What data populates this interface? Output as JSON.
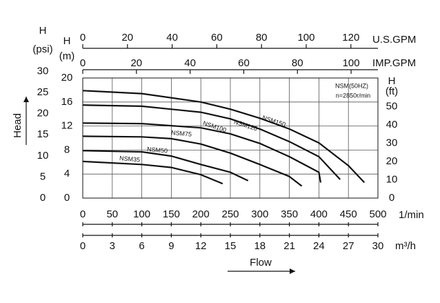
{
  "chart_data": {
    "type": "line",
    "x_label": "Flow",
    "y_label": "Head",
    "x_unit": "1/min",
    "xlim": [
      0,
      500
    ],
    "xticks": [
      0,
      50,
      100,
      150,
      200,
      250,
      300,
      350,
      400,
      450,
      500
    ],
    "y_symbol": "H",
    "y_unit": "(m)",
    "ylim": [
      0,
      20
    ],
    "yticks": [
      0,
      4,
      8,
      12,
      16,
      20
    ],
    "grid": true,
    "annotations": [
      "NSM(50HZ)",
      "n=2850r/min"
    ],
    "extra_axes": [
      {
        "symbol": "H",
        "unit": "(psi)",
        "lim": [
          0,
          28.45
        ],
        "ticks": [
          0,
          5,
          10,
          15,
          20,
          25,
          30
        ]
      },
      {
        "symbol": "H",
        "unit": "(ft)",
        "lim": [
          0,
          65.6
        ],
        "ticks": [
          0,
          10,
          20,
          30,
          40,
          50
        ]
      },
      {
        "unit": "U.S.GPM",
        "lim": [
          0,
          132.1
        ],
        "ticks": [
          0,
          20,
          40,
          60,
          80,
          100,
          120
        ]
      },
      {
        "unit": "IMP.GPM",
        "lim": [
          0,
          110
        ],
        "ticks": [
          0,
          20,
          40,
          60,
          80,
          100
        ]
      },
      {
        "unit": "m³/h",
        "lim": [
          0,
          30
        ],
        "ticks": [
          0,
          3,
          6,
          9,
          12,
          15,
          18,
          21,
          24,
          27,
          30
        ]
      }
    ],
    "series": [
      {
        "name": "NSM35",
        "color": "#111111",
        "x": [
          0,
          100,
          150,
          200,
          237
        ],
        "values": [
          6.1,
          5.6,
          5.1,
          3.9,
          2.4
        ]
      },
      {
        "name": "NSM50",
        "color": "#111111",
        "x": [
          0,
          100,
          150,
          200,
          250,
          280
        ],
        "values": [
          7.9,
          7.7,
          7.0,
          5.6,
          4.3,
          2.9
        ]
      },
      {
        "name": "NSM75",
        "color": "#111111",
        "x": [
          0,
          100,
          150,
          200,
          250,
          300,
          350,
          371
        ],
        "values": [
          10.3,
          10.2,
          9.9,
          9.0,
          7.5,
          5.6,
          3.6,
          2.0
        ]
      },
      {
        "name": "NSM100",
        "color": "#111111",
        "x": [
          0,
          100,
          200,
          250,
          300,
          350,
          400,
          403
        ],
        "values": [
          12.5,
          12.4,
          11.7,
          10.7,
          9.1,
          6.9,
          4.3,
          2.6
        ]
      },
      {
        "name": "NSM120",
        "color": "#111111",
        "x": [
          0,
          100,
          200,
          250,
          300,
          350,
          400,
          436
        ],
        "values": [
          15.5,
          15.3,
          14.3,
          13.2,
          11.5,
          9.4,
          6.9,
          3.1
        ]
      },
      {
        "name": "NSM150",
        "color": "#111111",
        "x": [
          0,
          100,
          200,
          250,
          300,
          350,
          400,
          450,
          477
        ],
        "values": [
          17.9,
          17.4,
          16.0,
          14.8,
          13.3,
          11.5,
          9.2,
          5.4,
          2.6
        ]
      }
    ]
  }
}
